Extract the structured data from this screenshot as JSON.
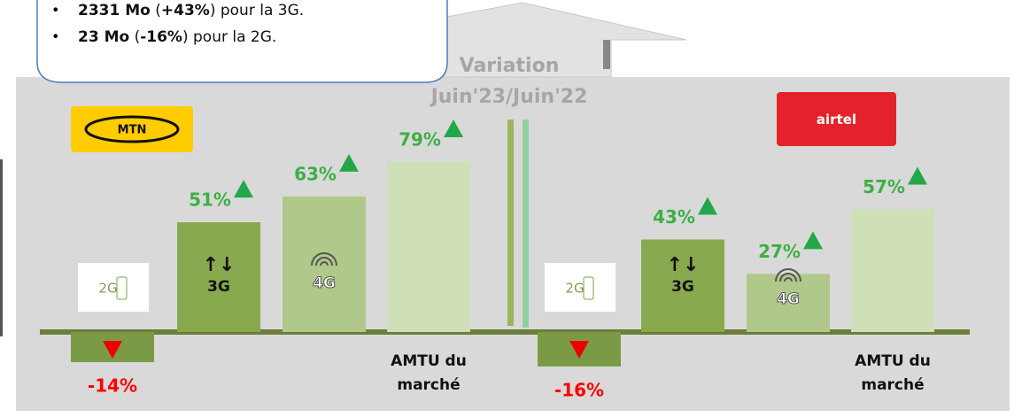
{
  "callout": {
    "items": [
      [
        "2331 Mo",
        " (",
        "+43%",
        ") pour la 3G."
      ],
      [
        "23 Mo",
        " (",
        "-16%",
        ") pour la 2G."
      ]
    ]
  },
  "variation": [
    "Variation",
    "Juin'23/Juin'22"
  ],
  "chart_data": [
    {
      "type": "bar",
      "title": "MTN",
      "logo_color": "#ffcc00",
      "title_color": "#111111",
      "categories": [
        "2G",
        "3G",
        "4G",
        "AMTU du marché"
      ],
      "values": [
        -14,
        51,
        63,
        79
      ],
      "value_labels": [
        "-14%",
        "51%",
        "63%",
        "79%"
      ],
      "colors": [
        "#7b9a46",
        "#89a94e",
        "#b0c98a",
        "#cfdfb8"
      ]
    },
    {
      "type": "bar",
      "title": "airtel",
      "logo_color": "#e4222b",
      "title_color": "#ffffff",
      "categories": [
        "2G",
        "3G",
        "4G",
        "AMTU du marché"
      ],
      "values": [
        -16,
        43,
        27,
        57
      ],
      "value_labels": [
        "-16%",
        "43%",
        "27%",
        "57%"
      ],
      "colors": [
        "#7b9a46",
        "#89a94e",
        "#b0c98a",
        "#cfdfb8"
      ]
    }
  ]
}
